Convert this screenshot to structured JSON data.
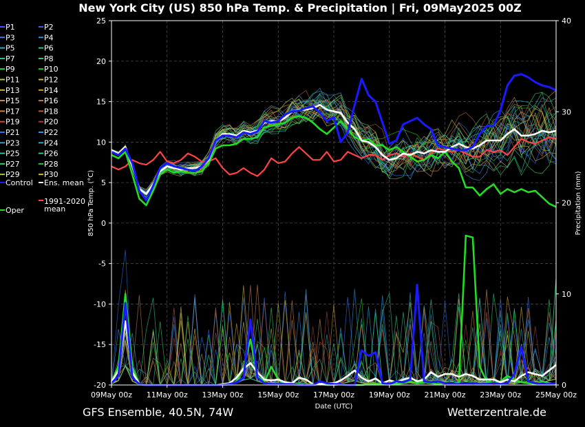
{
  "chart_data": {
    "type": "line",
    "title": "New York City  (US)  850 hPa Temp. & Precipitation | Fri, 09May2025 00Z",
    "xlabel": "Date (UTC)",
    "ylabel": "850 hPa Temp. (°C)",
    "y2label": "Precipitation (mm)",
    "x_ticks": [
      "09May 00z",
      "11May 00z",
      "13May 00z",
      "15May 00z",
      "17May 00z",
      "19May 00z",
      "21May 00z",
      "23May 00z",
      "25May 00z"
    ],
    "x_range_days": [
      0,
      16
    ],
    "ylim": [
      -20,
      25
    ],
    "y_ticks": [
      25,
      20,
      15,
      10,
      5,
      0,
      -5,
      -10,
      -15,
      -20
    ],
    "y2lim": [
      0,
      40
    ],
    "y2_ticks": [
      40,
      30,
      20,
      10,
      0
    ],
    "grid": true,
    "legend_position": "left",
    "legend_items": [
      {
        "label": "P1",
        "color": "#3a5bff"
      },
      {
        "label": "P2",
        "color": "#2f6bd9"
      },
      {
        "label": "P3",
        "color": "#4a7fd6"
      },
      {
        "label": "P4",
        "color": "#3a8fd0"
      },
      {
        "label": "P5",
        "color": "#3aa6b8"
      },
      {
        "label": "P6",
        "color": "#2fbf9a"
      },
      {
        "label": "P7",
        "color": "#3bc48a"
      },
      {
        "label": "P8",
        "color": "#3acb6a"
      },
      {
        "label": "P9",
        "color": "#2fd04a"
      },
      {
        "label": "P10",
        "color": "#28c828"
      },
      {
        "label": "P11",
        "color": "#b8c840"
      },
      {
        "label": "P12",
        "color": "#c8b840"
      },
      {
        "label": "P13",
        "color": "#d0b040"
      },
      {
        "label": "P14",
        "color": "#d0a030"
      },
      {
        "label": "P15",
        "color": "#c89060"
      },
      {
        "label": "P16",
        "color": "#b88050"
      },
      {
        "label": "P17",
        "color": "#d08040"
      },
      {
        "label": "P18",
        "color": "#b06040"
      },
      {
        "label": "P19",
        "color": "#c05040"
      },
      {
        "label": "P20",
        "color": "#a04040"
      },
      {
        "label": "P21",
        "color": "#3a70e0"
      },
      {
        "label": "P22",
        "color": "#3a90e0"
      },
      {
        "label": "P23",
        "color": "#3aa0d0"
      },
      {
        "label": "P24",
        "color": "#30a8c8"
      },
      {
        "label": "P25",
        "color": "#30c0a0"
      },
      {
        "label": "P26",
        "color": "#30c890"
      },
      {
        "label": "P27",
        "color": "#30c870"
      },
      {
        "label": "P28",
        "color": "#30c050"
      },
      {
        "label": "P29",
        "color": "#a0d040"
      },
      {
        "label": "P30",
        "color": "#d0c040"
      },
      {
        "label": "Control",
        "color": "#1a1aff"
      },
      {
        "label": "Ens. mean",
        "color": "#ffffff"
      },
      {
        "label": "Oper",
        "color": "#22dd22"
      },
      {
        "label": "1991-2020 mean",
        "color": "#ff4444"
      }
    ],
    "series": [
      {
        "name": "Control",
        "color": "#1a1aff",
        "axis": "temp",
        "x": [
          0,
          0.25,
          0.5,
          0.75,
          1,
          1.25,
          1.5,
          1.75,
          2,
          2.25,
          2.5,
          2.75,
          3,
          3.25,
          3.5,
          3.75,
          4,
          4.25,
          4.5,
          4.75,
          5,
          5.25,
          5.5,
          5.75,
          6,
          6.25,
          6.5,
          6.75,
          7,
          7.25,
          7.5,
          7.75,
          8,
          8.25,
          8.5,
          8.75,
          9,
          9.25,
          9.5,
          9.75,
          10,
          10.25,
          10.5,
          10.75,
          11,
          11.25,
          11.5,
          11.75,
          12,
          12.25,
          12.5,
          12.75,
          13,
          13.25,
          13.5,
          13.75,
          14,
          14.25,
          14.5,
          14.75,
          15,
          15.25,
          15.5,
          15.75,
          16
        ],
        "values": [
          8.8,
          8.4,
          9.2,
          7.4,
          4.0,
          2.8,
          4.6,
          6.8,
          7.4,
          7.0,
          6.8,
          6.6,
          6.4,
          7.0,
          8.0,
          10.2,
          10.8,
          10.8,
          10.6,
          11.2,
          11.0,
          11.3,
          12.6,
          12.4,
          12.6,
          13.4,
          13.8,
          13.9,
          14.2,
          14.4,
          13.6,
          12.6,
          13.1,
          10.0,
          11.2,
          14.6,
          17.8,
          15.8,
          15.0,
          12.4,
          9.8,
          10.2,
          12.2,
          12.6,
          13.0,
          12.2,
          11.6,
          9.6,
          9.4,
          9.2,
          9.0,
          9.0,
          9.4,
          11.0,
          12.0,
          12.0,
          14.0,
          17.0,
          18.2,
          18.4,
          18.0,
          17.4,
          17.0,
          16.8,
          16.4
        ]
      },
      {
        "name": "Ens. mean",
        "color": "#ffffff",
        "axis": "temp",
        "x": [
          0,
          0.25,
          0.5,
          0.75,
          1,
          1.25,
          1.5,
          1.75,
          2,
          2.25,
          2.5,
          2.75,
          3,
          3.25,
          3.5,
          3.75,
          4,
          4.25,
          4.5,
          4.75,
          5,
          5.25,
          5.5,
          5.75,
          6,
          6.25,
          6.5,
          6.75,
          7,
          7.25,
          7.5,
          7.75,
          8,
          8.25,
          8.5,
          8.75,
          9,
          9.25,
          9.5,
          9.75,
          10,
          10.25,
          10.5,
          10.75,
          11,
          11.25,
          11.5,
          11.75,
          12,
          12.25,
          12.5,
          12.75,
          13,
          13.25,
          13.5,
          13.75,
          14,
          14.25,
          14.5,
          14.75,
          15,
          15.25,
          15.5,
          15.75,
          16
        ],
        "values": [
          9.0,
          8.6,
          9.4,
          7.0,
          4.2,
          3.6,
          4.8,
          6.4,
          7.0,
          6.8,
          6.6,
          6.8,
          6.8,
          7.0,
          7.8,
          10.2,
          11.0,
          11.0,
          10.8,
          11.4,
          11.2,
          11.4,
          12.4,
          12.6,
          12.6,
          13.0,
          13.8,
          14.0,
          14.0,
          14.2,
          14.6,
          14.0,
          13.8,
          13.6,
          12.4,
          11.6,
          10.2,
          10.0,
          9.4,
          8.4,
          7.8,
          8.0,
          8.6,
          8.4,
          8.8,
          8.6,
          9.0,
          8.8,
          8.8,
          9.4,
          9.8,
          9.4,
          9.2,
          9.6,
          10.2,
          10.2,
          10.2,
          11.0,
          11.6,
          10.8,
          10.8,
          11.0,
          11.4,
          11.2,
          11.4
        ]
      },
      {
        "name": "Oper",
        "color": "#22dd22",
        "axis": "temp",
        "x": [
          0,
          0.25,
          0.5,
          0.75,
          1,
          1.25,
          1.5,
          1.75,
          2,
          2.25,
          2.5,
          2.75,
          3,
          3.25,
          3.5,
          3.75,
          4,
          4.25,
          4.5,
          4.75,
          5,
          5.25,
          5.5,
          5.75,
          6,
          6.25,
          6.5,
          6.75,
          7,
          7.25,
          7.5,
          7.75,
          8,
          8.25,
          8.5,
          8.75,
          9,
          9.25,
          9.5,
          9.75,
          10,
          10.25,
          10.5,
          10.75,
          11,
          11.25,
          11.5,
          11.75,
          12,
          12.25,
          12.5,
          12.75,
          13,
          13.25,
          13.5,
          13.75,
          14,
          14.25,
          14.5,
          14.75,
          15,
          15.25,
          15.5,
          15.75,
          16
        ],
        "values": [
          8.4,
          8.0,
          8.8,
          6.0,
          3.0,
          2.2,
          4.0,
          6.0,
          6.6,
          6.2,
          6.4,
          6.2,
          6.2,
          6.4,
          7.4,
          9.2,
          9.6,
          9.6,
          9.8,
          10.4,
          10.4,
          10.6,
          11.8,
          12.0,
          12.2,
          12.4,
          13.0,
          13.2,
          13.0,
          12.4,
          11.6,
          11.0,
          11.8,
          12.6,
          11.6,
          10.6,
          10.2,
          10.4,
          9.6,
          9.6,
          9.0,
          9.4,
          8.8,
          8.2,
          7.6,
          7.8,
          8.4,
          8.0,
          8.8,
          7.6,
          6.8,
          4.4,
          4.4,
          3.4,
          4.2,
          4.8,
          3.6,
          4.2,
          3.8,
          4.2,
          3.8,
          4.0,
          3.2,
          2.4,
          2.0
        ]
      },
      {
        "name": "1991-2020 mean",
        "color": "#ff4444",
        "axis": "temp",
        "x": [
          0,
          0.25,
          0.5,
          0.75,
          1,
          1.25,
          1.5,
          1.75,
          2,
          2.25,
          2.5,
          2.75,
          3,
          3.25,
          3.5,
          3.75,
          4,
          4.25,
          4.5,
          4.75,
          5,
          5.25,
          5.5,
          5.75,
          6,
          6.25,
          6.5,
          6.75,
          7,
          7.25,
          7.5,
          7.75,
          8,
          8.25,
          8.5,
          8.75,
          9,
          9.25,
          9.5,
          9.75,
          10,
          10.25,
          10.5,
          10.75,
          11,
          11.25,
          11.5,
          11.75,
          12,
          12.25,
          12.5,
          12.75,
          13,
          13.25,
          13.5,
          13.75,
          14,
          14.25,
          14.5,
          14.75,
          15,
          15.25,
          15.5,
          15.75,
          16
        ],
        "values": [
          7.0,
          6.6,
          7.0,
          7.8,
          7.4,
          7.2,
          7.8,
          8.8,
          7.6,
          7.4,
          7.8,
          8.6,
          8.2,
          7.6,
          7.6,
          8.0,
          6.8,
          6.0,
          6.2,
          6.8,
          6.2,
          5.8,
          6.6,
          8.0,
          7.4,
          7.6,
          8.6,
          9.4,
          8.6,
          7.8,
          7.8,
          8.8,
          7.6,
          7.8,
          8.8,
          8.4,
          8.0,
          8.4,
          8.4,
          7.8,
          8.4,
          8.6,
          8.2,
          8.6,
          8.2,
          7.8,
          8.6,
          9.2,
          9.0,
          8.8,
          9.0,
          8.6,
          8.2,
          8.2,
          9.0,
          8.8,
          9.0,
          8.4,
          9.4,
          10.4,
          10.0,
          9.8,
          10.2,
          10.6,
          10.4
        ]
      },
      {
        "name": "Control",
        "color": "#1a1aff",
        "axis": "precip",
        "x": [
          0,
          0.25,
          0.5,
          0.75,
          1,
          1.25,
          1.5,
          1.75,
          2,
          2.25,
          2.5,
          2.75,
          3,
          3.25,
          3.5,
          3.75,
          4,
          4.25,
          4.5,
          4.75,
          5,
          5.25,
          5.5,
          5.75,
          6,
          6.25,
          6.5,
          6.75,
          7,
          7.25,
          7.5,
          7.75,
          8,
          8.25,
          8.5,
          8.75,
          9,
          9.25,
          9.5,
          9.75,
          10,
          10.25,
          10.5,
          10.75,
          11,
          11.25,
          11.5,
          11.75,
          12,
          12.25,
          12.5,
          12.75,
          13,
          13.25,
          13.5,
          13.75,
          14,
          14.25,
          14.5,
          14.75,
          15,
          15.25,
          15.5,
          15.75,
          16
        ],
        "values": [
          0.2,
          1.0,
          9.0,
          0.8,
          0.1,
          0,
          0,
          0,
          0,
          0,
          0,
          0,
          0,
          0,
          0,
          0,
          0,
          0.1,
          0.3,
          0.8,
          7.2,
          0.8,
          0.2,
          0.1,
          0.1,
          0.1,
          0.1,
          0,
          0,
          0,
          0.4,
          0.2,
          0.1,
          0.1,
          0,
          0,
          3.8,
          3.2,
          3.6,
          0.2,
          0.1,
          0.4,
          0.3,
          0.6,
          11.0,
          0.4,
          0.3,
          0.4,
          0.2,
          0.1,
          0.1,
          0.1,
          0.2,
          0.1,
          0.1,
          0.2,
          0.1,
          0.2,
          1.2,
          4.2,
          0.4,
          0.2,
          0.1,
          0.1,
          0.2
        ]
      },
      {
        "name": "Ens. mean",
        "color": "#ffffff",
        "axis": "precip",
        "x": [
          0,
          0.25,
          0.5,
          0.75,
          1,
          1.25,
          1.5,
          1.75,
          2,
          2.25,
          2.5,
          2.75,
          3,
          3.25,
          3.5,
          3.75,
          4,
          4.25,
          4.5,
          4.75,
          5,
          5.25,
          5.5,
          5.75,
          6,
          6.25,
          6.5,
          6.75,
          7,
          7.25,
          7.5,
          7.75,
          8,
          8.25,
          8.5,
          8.75,
          9,
          9.25,
          9.5,
          9.75,
          10,
          10.25,
          10.5,
          10.75,
          11,
          11.25,
          11.5,
          11.75,
          12,
          12.25,
          12.5,
          12.75,
          13,
          13.25,
          13.5,
          13.75,
          14,
          14.25,
          14.5,
          14.75,
          15,
          15.25,
          15.5,
          15.75,
          16
        ],
        "values": [
          0.3,
          1.6,
          7.0,
          1.4,
          0.1,
          0,
          0,
          0,
          0,
          0,
          0,
          0,
          0,
          0,
          0,
          0,
          0.1,
          0.2,
          0.8,
          1.8,
          2.4,
          1.4,
          0.6,
          0.5,
          0.6,
          0.3,
          0.2,
          0.8,
          0.6,
          0.1,
          0.1,
          0.2,
          0.2,
          0.5,
          1.0,
          1.6,
          0.8,
          0.4,
          0.7,
          0.2,
          0.5,
          0.3,
          0.6,
          0.8,
          0.4,
          0.6,
          1.4,
          0.9,
          1.2,
          1.2,
          0.9,
          1.2,
          1.0,
          0.6,
          0.6,
          0.6,
          0.3,
          0.6,
          0.4,
          1.0,
          1.4,
          1.2,
          1.0,
          1.6,
          2.2
        ]
      },
      {
        "name": "Oper",
        "color": "#22dd22",
        "axis": "precip",
        "x": [
          0,
          0.25,
          0.5,
          0.75,
          1,
          1.25,
          1.5,
          1.75,
          2,
          2.25,
          2.5,
          2.75,
          3,
          3.25,
          3.5,
          3.75,
          4,
          4.25,
          4.5,
          4.75,
          5,
          5.25,
          5.5,
          5.75,
          6,
          6.25,
          6.5,
          6.75,
          7,
          7.25,
          7.5,
          7.75,
          8,
          8.25,
          8.5,
          8.75,
          9,
          9.25,
          9.5,
          9.75,
          10,
          10.25,
          10.5,
          10.75,
          11,
          11.25,
          11.5,
          11.75,
          12,
          12.25,
          12.5,
          12.75,
          13,
          13.25,
          13.5,
          13.75,
          14,
          14.25,
          14.5,
          14.75,
          15,
          15.25,
          15.5,
          15.75,
          16
        ],
        "values": [
          0.4,
          2.0,
          10.0,
          2.0,
          0.1,
          0,
          0,
          0,
          0,
          0,
          0,
          0,
          0,
          0,
          0,
          0,
          0,
          0.1,
          0.4,
          2.0,
          5.0,
          1.0,
          0.3,
          2.0,
          0.6,
          0.1,
          0.1,
          0.1,
          0,
          0,
          0.1,
          0,
          0,
          0.1,
          0,
          0,
          0,
          0.1,
          0.1,
          0.1,
          0.1,
          0.1,
          0.2,
          0.4,
          0.2,
          0.3,
          0.2,
          0.1,
          0.2,
          0.1,
          0.2,
          16.4,
          16.2,
          2.0,
          0.4,
          0.2,
          0.4,
          1.0,
          0.6,
          0.3,
          0.2,
          0.1,
          0.4,
          0.2,
          0.1
        ]
      }
    ],
    "ensemble_members_shown": 30
  },
  "footer": {
    "source_left": "GFS Ensemble, 40.5N, 74W",
    "source_right": "Wetterzentrale.de"
  }
}
